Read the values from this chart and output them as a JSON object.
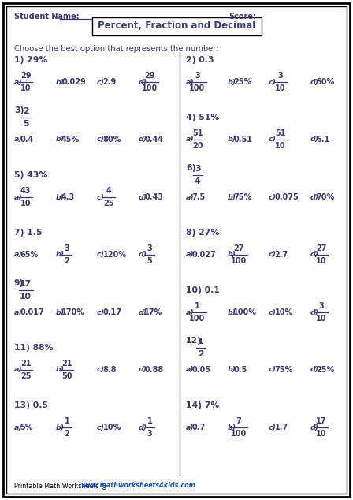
{
  "title": "Percent, Fraction and Decimal",
  "student_label": "Student Name:",
  "score_label": "Score:",
  "instruction": "Choose the best option that represents the number:",
  "footer_prefix": "Printable Math Worksheets @ ",
  "footer_url": "www.mathworksheets4kids.com",
  "text_color": "#3b3b6b",
  "background": "#ffffff",
  "questions_left": [
    {
      "num": "1)",
      "q": "29%",
      "opts": [
        {
          "label": "a)",
          "frac": [
            "29",
            "10"
          ],
          "text": null
        },
        {
          "label": "b)",
          "frac": null,
          "text": "0.029"
        },
        {
          "label": "c)",
          "frac": null,
          "text": "2.9"
        },
        {
          "label": "d)",
          "frac": [
            "29",
            "100"
          ],
          "text": null
        }
      ]
    },
    {
      "num": "3)",
      "q_frac": [
        "2",
        "5"
      ],
      "q": null,
      "opts": [
        {
          "label": "a)",
          "frac": null,
          "text": "0.4"
        },
        {
          "label": "b)",
          "frac": null,
          "text": "45%"
        },
        {
          "label": "c)",
          "frac": null,
          "text": "80%"
        },
        {
          "label": "d)",
          "frac": null,
          "text": "0.44"
        }
      ]
    },
    {
      "num": "5)",
      "q": "43%",
      "opts": [
        {
          "label": "a)",
          "frac": [
            "43",
            "10"
          ],
          "text": null
        },
        {
          "label": "b)",
          "frac": null,
          "text": "4.3"
        },
        {
          "label": "c)",
          "frac": [
            "4",
            "25"
          ],
          "text": null
        },
        {
          "label": "d)",
          "frac": null,
          "text": "0.43"
        }
      ]
    },
    {
      "num": "7)",
      "q": "1.5",
      "opts": [
        {
          "label": "a)",
          "frac": null,
          "text": "65%"
        },
        {
          "label": "b)",
          "frac": [
            "3",
            "2"
          ],
          "text": null
        },
        {
          "label": "c)",
          "frac": null,
          "text": "120%"
        },
        {
          "label": "d)",
          "frac": [
            "3",
            "5"
          ],
          "text": null
        }
      ]
    },
    {
      "num": "9)",
      "q_frac": [
        "17",
        "10"
      ],
      "q": null,
      "opts": [
        {
          "label": "a)",
          "frac": null,
          "text": "0.017"
        },
        {
          "label": "b)",
          "frac": null,
          "text": "170%"
        },
        {
          "label": "c)",
          "frac": null,
          "text": "0.17"
        },
        {
          "label": "d)",
          "frac": null,
          "text": "17%"
        }
      ]
    },
    {
      "num": "11)",
      "q": "88%",
      "opts": [
        {
          "label": "a)",
          "frac": [
            "21",
            "25"
          ],
          "text": null
        },
        {
          "label": "b)",
          "frac": [
            "21",
            "50"
          ],
          "text": null
        },
        {
          "label": "c)",
          "frac": null,
          "text": "8.8"
        },
        {
          "label": "d)",
          "frac": null,
          "text": "0.88"
        }
      ]
    },
    {
      "num": "13)",
      "q": "0.5",
      "opts": [
        {
          "label": "a)",
          "frac": null,
          "text": "5%"
        },
        {
          "label": "b)",
          "frac": [
            "1",
            "2"
          ],
          "text": null
        },
        {
          "label": "c)",
          "frac": null,
          "text": "10%"
        },
        {
          "label": "d)",
          "frac": [
            "1",
            "3"
          ],
          "text": null
        }
      ]
    }
  ],
  "questions_right": [
    {
      "num": "2)",
      "q": "0.3",
      "opts": [
        {
          "label": "a)",
          "frac": [
            "3",
            "100"
          ],
          "text": null
        },
        {
          "label": "b)",
          "frac": null,
          "text": "25%"
        },
        {
          "label": "c)",
          "frac": [
            "3",
            "10"
          ],
          "text": null
        },
        {
          "label": "d)",
          "frac": null,
          "text": "50%"
        }
      ]
    },
    {
      "num": "4)",
      "q": "51%",
      "opts": [
        {
          "label": "a)",
          "frac": [
            "51",
            "20"
          ],
          "text": null
        },
        {
          "label": "b)",
          "frac": null,
          "text": "0.51"
        },
        {
          "label": "c)",
          "frac": [
            "51",
            "10"
          ],
          "text": null
        },
        {
          "label": "d)",
          "frac": null,
          "text": "5.1"
        }
      ]
    },
    {
      "num": "6)",
      "q_frac": [
        "3",
        "4"
      ],
      "q": null,
      "opts": [
        {
          "label": "a)",
          "frac": null,
          "text": "7.5"
        },
        {
          "label": "b)",
          "frac": null,
          "text": "75%"
        },
        {
          "label": "c)",
          "frac": null,
          "text": "0.075"
        },
        {
          "label": "d)",
          "frac": null,
          "text": "70%"
        }
      ]
    },
    {
      "num": "8)",
      "q": "27%",
      "opts": [
        {
          "label": "a)",
          "frac": null,
          "text": "0.027"
        },
        {
          "label": "b)",
          "frac": [
            "27",
            "100"
          ],
          "text": null
        },
        {
          "label": "c)",
          "frac": null,
          "text": "2.7"
        },
        {
          "label": "d)",
          "frac": [
            "27",
            "10"
          ],
          "text": null
        }
      ]
    },
    {
      "num": "10)",
      "q": "0.1",
      "opts": [
        {
          "label": "a)",
          "frac": [
            "1",
            "100"
          ],
          "text": null
        },
        {
          "label": "b)",
          "frac": null,
          "text": "100%"
        },
        {
          "label": "c)",
          "frac": null,
          "text": "10%"
        },
        {
          "label": "d)",
          "frac": [
            "3",
            "10"
          ],
          "text": null
        }
      ]
    },
    {
      "num": "12)",
      "q_frac": [
        "1",
        "2"
      ],
      "q": null,
      "opts": [
        {
          "label": "a)",
          "frac": null,
          "text": "0.05"
        },
        {
          "label": "b)",
          "frac": null,
          "text": "0.5"
        },
        {
          "label": "c)",
          "frac": null,
          "text": "75%"
        },
        {
          "label": "d)",
          "frac": null,
          "text": "25%"
        }
      ]
    },
    {
      "num": "14)",
      "q": "7%",
      "opts": [
        {
          "label": "a)",
          "frac": null,
          "text": "0.7"
        },
        {
          "label": "b)",
          "frac": [
            "7",
            "100"
          ],
          "text": null
        },
        {
          "label": "c)",
          "frac": null,
          "text": "1.7"
        },
        {
          "label": "d)",
          "frac": [
            "17",
            "10"
          ],
          "text": null
        }
      ]
    }
  ]
}
